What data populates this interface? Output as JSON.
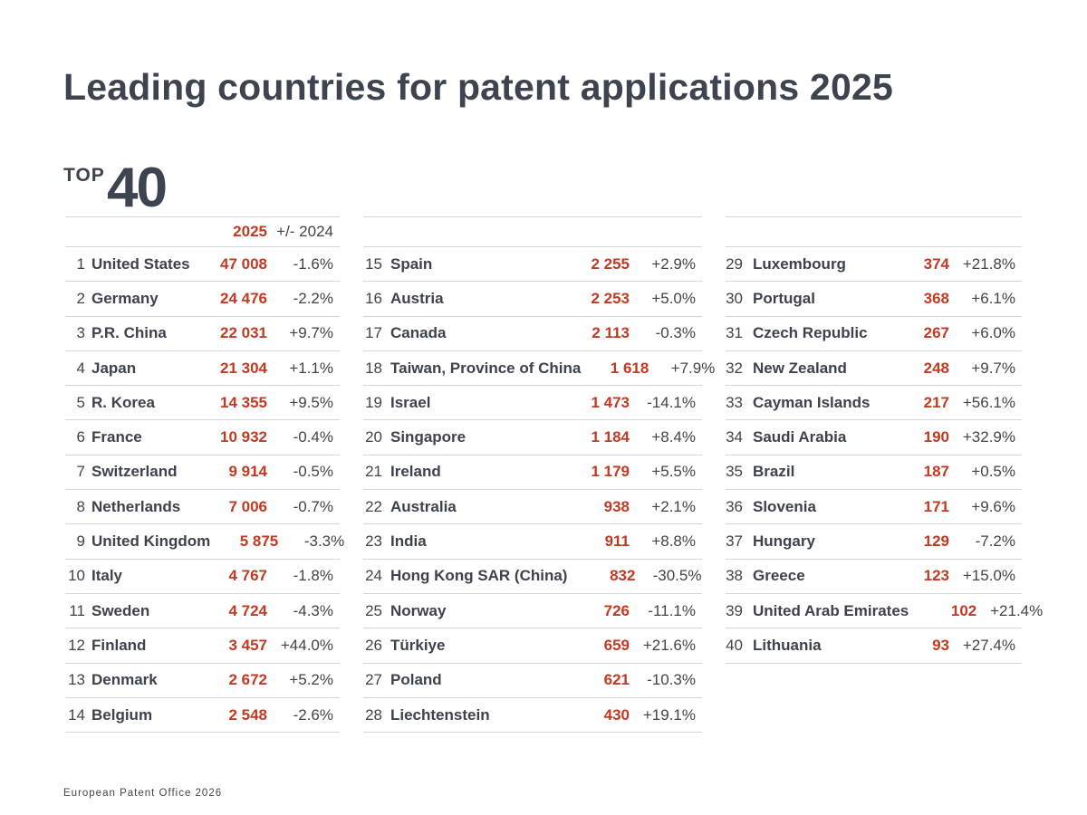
{
  "title": "Leading countries for patent applications 2025",
  "badge": {
    "top": "TOP",
    "number": "40"
  },
  "header": {
    "year": "2025",
    "change": "+/- 2024"
  },
  "colors": {
    "accent": "#c23a22",
    "text": "#3d4450"
  },
  "columns": [
    [
      {
        "rank": "1",
        "country": "United States",
        "value": "47 008",
        "change": "-1.6%"
      },
      {
        "rank": "2",
        "country": "Germany",
        "value": "24 476",
        "change": "-2.2%"
      },
      {
        "rank": "3",
        "country": "P.R. China",
        "value": "22 031",
        "change": "+9.7%"
      },
      {
        "rank": "4",
        "country": "Japan",
        "value": "21 304",
        "change": "+1.1%"
      },
      {
        "rank": "5",
        "country": "R. Korea",
        "value": "14 355",
        "change": "+9.5%"
      },
      {
        "rank": "6",
        "country": "France",
        "value": "10 932",
        "change": "-0.4%"
      },
      {
        "rank": "7",
        "country": "Switzerland",
        "value": "9 914",
        "change": "-0.5%"
      },
      {
        "rank": "8",
        "country": "Netherlands",
        "value": "7 006",
        "change": "-0.7%"
      },
      {
        "rank": "9",
        "country": "United Kingdom",
        "value": "5 875",
        "change": "-3.3%"
      },
      {
        "rank": "10",
        "country": "Italy",
        "value": "4 767",
        "change": "-1.8%"
      },
      {
        "rank": "11",
        "country": "Sweden",
        "value": "4 724",
        "change": "-4.3%"
      },
      {
        "rank": "12",
        "country": "Finland",
        "value": "3 457",
        "change": "+44.0%"
      },
      {
        "rank": "13",
        "country": "Denmark",
        "value": "2 672",
        "change": "+5.2%"
      },
      {
        "rank": "14",
        "country": "Belgium",
        "value": "2 548",
        "change": "-2.6%"
      }
    ],
    [
      {
        "rank": "15",
        "country": "Spain",
        "value": "2 255",
        "change": "+2.9%"
      },
      {
        "rank": "16",
        "country": "Austria",
        "value": "2 253",
        "change": "+5.0%"
      },
      {
        "rank": "17",
        "country": "Canada",
        "value": "2 113",
        "change": "-0.3%"
      },
      {
        "rank": "18",
        "country": "Taiwan, Province of China",
        "value": "1 618",
        "change": "+7.9%"
      },
      {
        "rank": "19",
        "country": "Israel",
        "value": "1 473",
        "change": "-14.1%"
      },
      {
        "rank": "20",
        "country": "Singapore",
        "value": "1 184",
        "change": "+8.4%"
      },
      {
        "rank": "21",
        "country": "Ireland",
        "value": "1 179",
        "change": "+5.5%"
      },
      {
        "rank": "22",
        "country": "Australia",
        "value": "938",
        "change": "+2.1%"
      },
      {
        "rank": "23",
        "country": "India",
        "value": "911",
        "change": "+8.8%"
      },
      {
        "rank": "24",
        "country": "Hong Kong SAR (China)",
        "value": "832",
        "change": "-30.5%"
      },
      {
        "rank": "25",
        "country": "Norway",
        "value": "726",
        "change": "-11.1%"
      },
      {
        "rank": "26",
        "country": "Türkiye",
        "value": "659",
        "change": "+21.6%"
      },
      {
        "rank": "27",
        "country": "Poland",
        "value": "621",
        "change": "-10.3%"
      },
      {
        "rank": "28",
        "country": "Liechtenstein",
        "value": "430",
        "change": "+19.1%"
      }
    ],
    [
      {
        "rank": "29",
        "country": "Luxembourg",
        "value": "374",
        "change": "+21.8%"
      },
      {
        "rank": "30",
        "country": "Portugal",
        "value": "368",
        "change": "+6.1%"
      },
      {
        "rank": "31",
        "country": "Czech Republic",
        "value": "267",
        "change": "+6.0%"
      },
      {
        "rank": "32",
        "country": "New Zealand",
        "value": "248",
        "change": "+9.7%"
      },
      {
        "rank": "33",
        "country": "Cayman Islands",
        "value": "217",
        "change": "+56.1%"
      },
      {
        "rank": "34",
        "country": "Saudi Arabia",
        "value": "190",
        "change": "+32.9%"
      },
      {
        "rank": "35",
        "country": "Brazil",
        "value": "187",
        "change": "+0.5%"
      },
      {
        "rank": "36",
        "country": "Slovenia",
        "value": "171",
        "change": "+9.6%"
      },
      {
        "rank": "37",
        "country": "Hungary",
        "value": "129",
        "change": "-7.2%"
      },
      {
        "rank": "38",
        "country": "Greece",
        "value": "123",
        "change": "+15.0%"
      },
      {
        "rank": "39",
        "country": "United Arab Emirates",
        "value": "102",
        "change": "+21.4%"
      },
      {
        "rank": "40",
        "country": "Lithuania",
        "value": "93",
        "change": "+27.4%"
      }
    ]
  ],
  "footer": "European Patent Office 2026"
}
